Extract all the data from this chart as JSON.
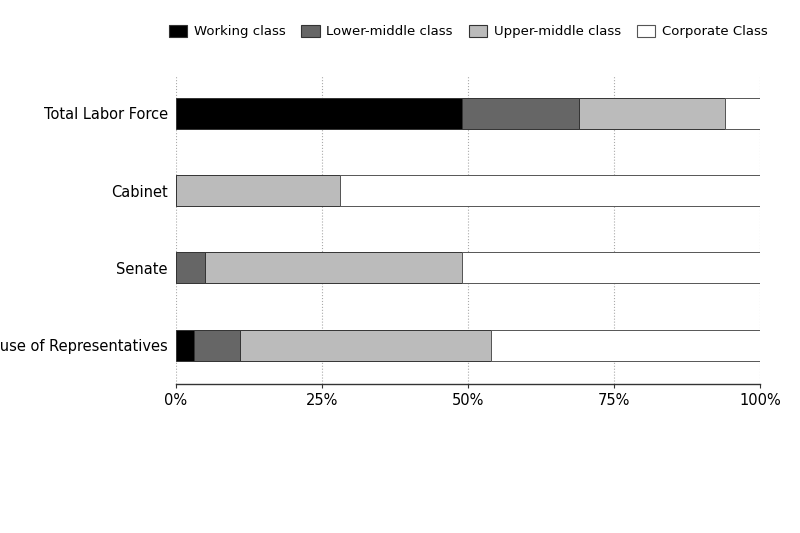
{
  "categories": [
    "Total Labor Force",
    "Cabinet",
    "Senate",
    "House of Representatives"
  ],
  "segments": {
    "Working class": [
      49,
      0,
      0,
      3
    ],
    "Lower-middle class": [
      20,
      0,
      5,
      8
    ],
    "Upper-middle class": [
      25,
      28,
      44,
      43
    ],
    "Corporate Class": [
      6,
      72,
      51,
      46
    ]
  },
  "colors": {
    "Working class": "#000000",
    "Lower-middle class": "#666666",
    "Upper-middle class": "#bbbbbb",
    "Corporate Class": "#ffffff"
  },
  "legend_order": [
    "Working class",
    "Lower-middle class",
    "Upper-middle class",
    "Corporate Class"
  ],
  "xtick_labels": [
    "0%",
    "25%",
    "50%",
    "75%",
    "100%"
  ],
  "xtick_values": [
    0,
    25,
    50,
    75,
    100
  ],
  "background_color": "#ffffff",
  "figsize": [
    8.0,
    5.33
  ],
  "dpi": 100
}
